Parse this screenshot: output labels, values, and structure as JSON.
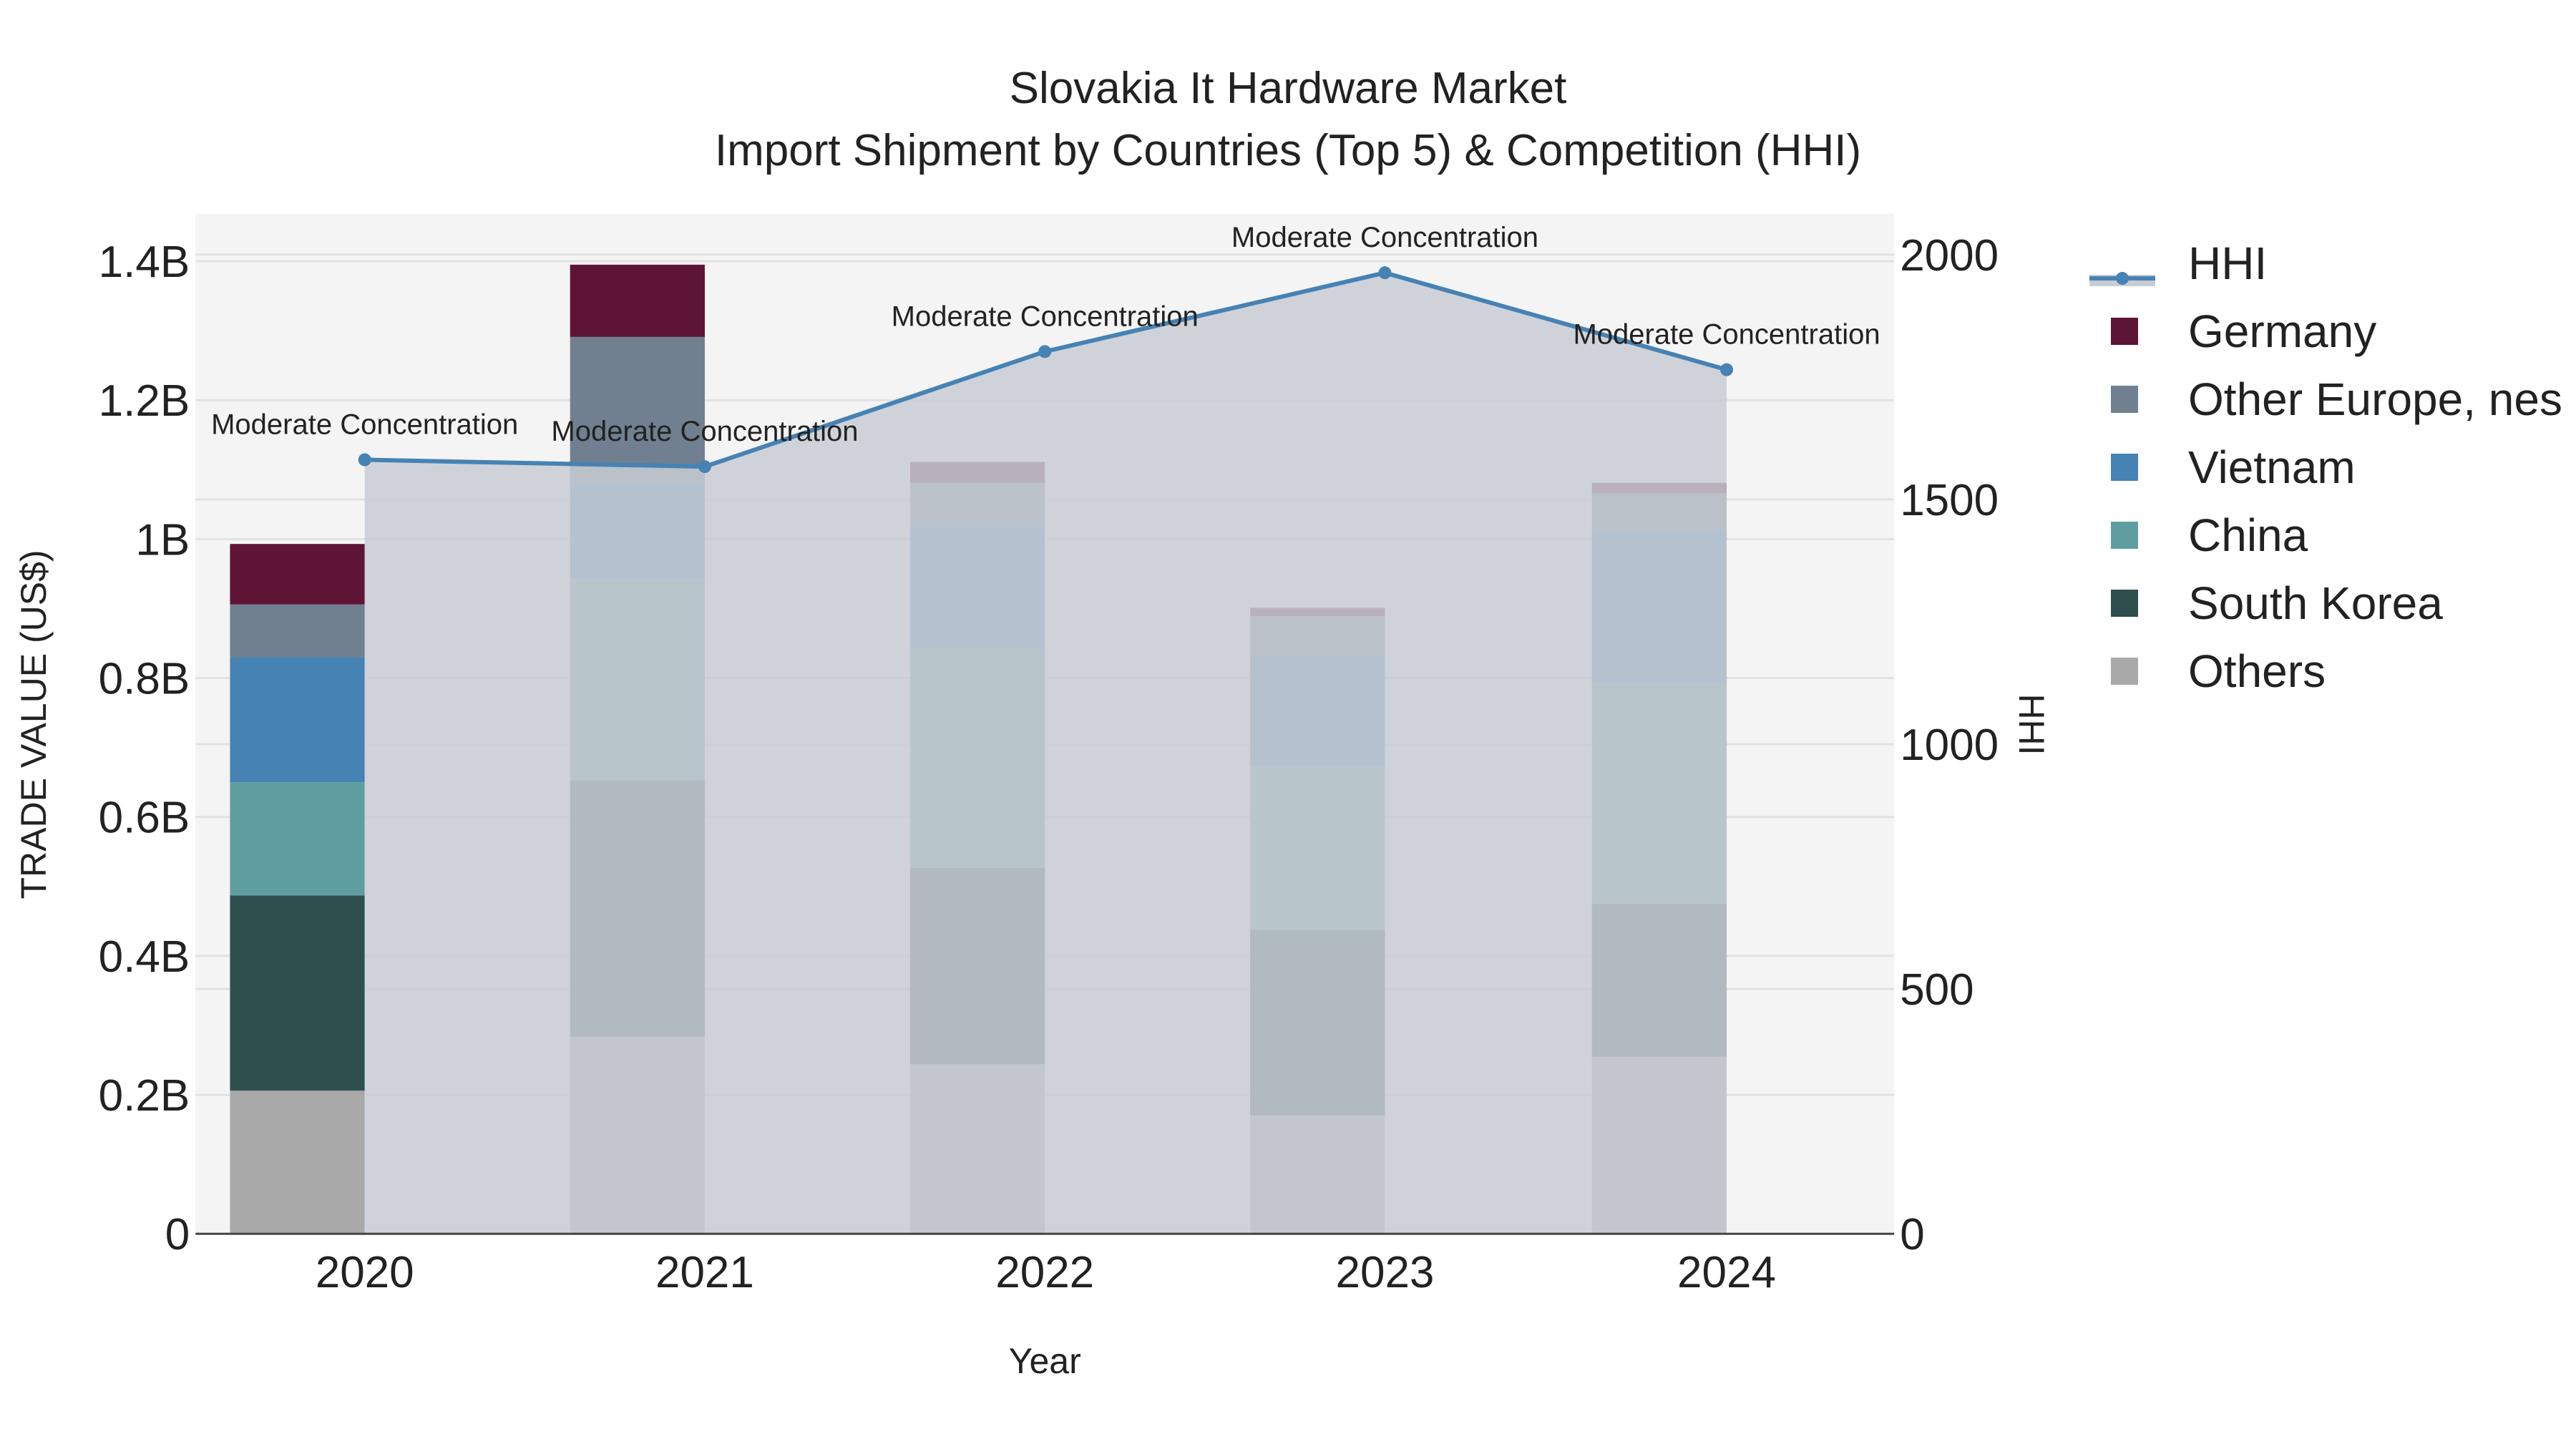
{
  "title": {
    "line1": "Slovakia It Hardware Market",
    "line2": "Import Shipment by Countries (Top 5) & Competition (HHI)"
  },
  "axes": {
    "x_title": "Year",
    "y_left_title": "TRADE VALUE (US$)",
    "y_right_title": "HHI",
    "y_left_ticks": [
      "0",
      "0.2B",
      "0.4B",
      "0.6B",
      "0.8B",
      "1B",
      "1.2B",
      "1.4B"
    ],
    "y_right_ticks": [
      "0",
      "500",
      "1000",
      "1500",
      "2000"
    ],
    "x_ticks": [
      "2020",
      "2021",
      "2022",
      "2023",
      "2024"
    ]
  },
  "legend": {
    "items": [
      {
        "label": "HHI",
        "color": "#4682b4",
        "kind": "line"
      },
      {
        "label": "Germany",
        "color": "#5e1435",
        "kind": "box"
      },
      {
        "label": "Other Europe, nes",
        "color": "#708090",
        "kind": "box"
      },
      {
        "label": "Vietnam",
        "color": "#4682b4",
        "kind": "box"
      },
      {
        "label": "China",
        "color": "#5f9ea0",
        "kind": "box"
      },
      {
        "label": "South Korea",
        "color": "#2f4f4f",
        "kind": "box"
      },
      {
        "label": "Others",
        "color": "#a9a9a9",
        "kind": "box"
      }
    ]
  },
  "annotations": [
    "Moderate Concentration",
    "Moderate Concentration",
    "Moderate Concentration",
    "Moderate Concentration",
    "Moderate Concentration"
  ],
  "colors": {
    "plot_bg": "#f4f4f4",
    "hhi_fill": "#c8ccd4",
    "hhi_line": "#4682b4",
    "grid": "#e2e2e2"
  },
  "chart_data": {
    "type": "bar",
    "title": "Slovakia It Hardware Market - Import Shipment by Countries (Top 5) & Competition (HHI)",
    "xlabel": "Year",
    "ylabel": "TRADE VALUE (US$)",
    "y2label": "HHI",
    "ylim": [
      0,
      1470000000.0
    ],
    "y2lim": [
      0,
      2070
    ],
    "stacked": true,
    "categories": [
      "2020",
      "2021",
      "2022",
      "2023",
      "2024"
    ],
    "series": [
      {
        "name": "Others",
        "color": "#a9a9a9",
        "values": [
          206000000,
          284000000,
          244000000,
          170000000,
          255000000
        ]
      },
      {
        "name": "South Korea",
        "color": "#2f4f4f",
        "values": [
          281000000,
          369000000,
          283000000,
          267000000,
          220000000
        ]
      },
      {
        "name": "China",
        "color": "#5f9ea0",
        "values": [
          163000000,
          290000000,
          315000000,
          235000000,
          317000000
        ]
      },
      {
        "name": "Vietnam",
        "color": "#4682b4",
        "values": [
          180000000,
          135000000,
          177000000,
          158000000,
          220000000
        ]
      },
      {
        "name": "Other Europe, nes",
        "color": "#708090",
        "values": [
          76000000,
          213000000,
          62000000,
          59000000,
          54000000
        ]
      },
      {
        "name": "Germany",
        "color": "#5e1435",
        "values": [
          87000000,
          104000000,
          30000000,
          12000000,
          15000000
        ]
      }
    ],
    "line_series": {
      "name": "HHI",
      "axis": "right",
      "type": "area-line",
      "values": [
        1581,
        1567,
        1802,
        1963,
        1765
      ],
      "labels": [
        "Moderate Concentration",
        "Moderate Concentration",
        "Moderate Concentration",
        "Moderate Concentration",
        "Moderate Concentration"
      ]
    },
    "grid": true,
    "legend_position": "right"
  }
}
